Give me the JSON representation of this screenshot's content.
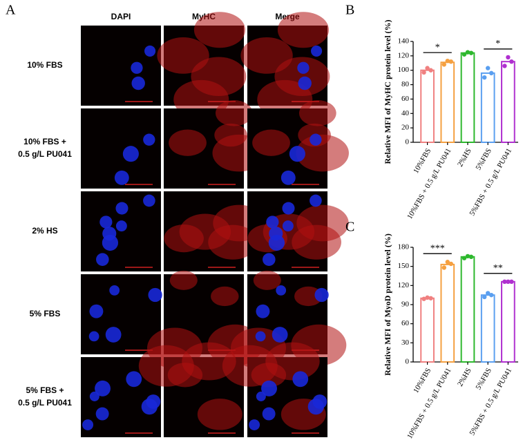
{
  "panel_a": {
    "label": "A",
    "columns": [
      "DAPI",
      "MyHC",
      "Merge"
    ],
    "rows": [
      [
        "10% FBS"
      ],
      [
        "10% FBS +",
        "0.5 g/L PU041"
      ],
      [
        "2% HS"
      ],
      [
        "5% FBS"
      ],
      [
        "5% FBS +",
        "0.5 g/L PU041"
      ]
    ]
  },
  "chart_data": [
    {
      "type": "bar",
      "label": "B",
      "ylabel": "Relative MFI of MyHC protein level (%)",
      "categories": [
        "10%FBS",
        "10%FBS + 0.5 g/L PU041",
        "2%HS",
        "5%FBS",
        "5%FBS + 0.5 g/L PU041"
      ],
      "values": [
        100,
        111,
        124,
        96,
        112
      ],
      "points": [
        [
          97,
          103,
          100
        ],
        [
          108,
          113,
          112
        ],
        [
          122,
          125,
          124
        ],
        [
          90,
          103,
          96
        ],
        [
          106,
          118,
          112
        ]
      ],
      "colors": [
        "#f08080",
        "#f5a040",
        "#2db82d",
        "#5a9ff0",
        "#b030d0"
      ],
      "ylim": [
        0,
        140
      ],
      "yticks": [
        0,
        20,
        40,
        60,
        80,
        100,
        120,
        140
      ],
      "significance": [
        {
          "label": "*",
          "pair": [
            "10%FBS",
            "10%FBS + 0.5 g/L PU041"
          ]
        },
        {
          "label": "*",
          "pair": [
            "5%FBS",
            "5%FBS + 0.5 g/L PU041"
          ]
        }
      ]
    },
    {
      "type": "bar",
      "label": "C",
      "ylabel": "Relative MFI of MyoD protein level (%)",
      "categories": [
        "10%FBS",
        "10%FBS + 0.5 g/L PU041",
        "2%HS",
        "5%FBS",
        "5%FBS + 0.5 g/L PU041"
      ],
      "values": [
        100,
        153,
        165,
        105,
        126
      ],
      "points": [
        [
          99,
          101,
          100
        ],
        [
          148,
          157,
          154
        ],
        [
          163,
          166,
          165
        ],
        [
          102,
          108,
          105
        ],
        [
          126,
          126,
          126
        ]
      ],
      "colors": [
        "#f08080",
        "#f5a040",
        "#2db82d",
        "#5a9ff0",
        "#b030d0"
      ],
      "ylim": [
        0,
        180
      ],
      "yticks": [
        0,
        30,
        60,
        90,
        120,
        150,
        180
      ],
      "significance": [
        {
          "label": "***",
          "pair": [
            "10%FBS",
            "10%FBS + 0.5 g/L PU041"
          ]
        },
        {
          "label": "**",
          "pair": [
            "5%FBS",
            "5%FBS + 0.5 g/L PU041"
          ]
        }
      ]
    }
  ]
}
